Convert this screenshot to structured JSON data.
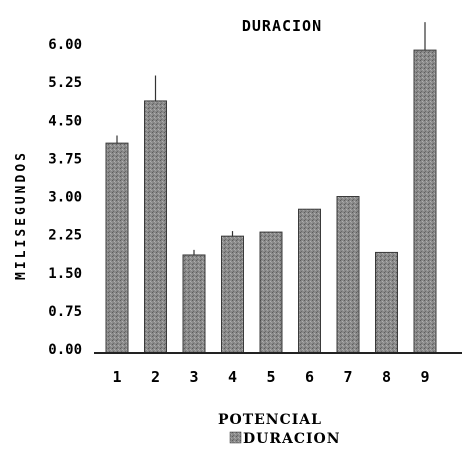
{
  "chart_data": {
    "type": "bar",
    "title": "DURACION",
    "xlabel": "POTENCIAL",
    "ylabel": "MILISEGUNDOS",
    "legend": [
      {
        "name": "DURACION",
        "color": "#8c8c8c"
      }
    ],
    "legend_position": "bottom",
    "categories": [
      "1",
      "2",
      "3",
      "4",
      "5",
      "6",
      "7",
      "8",
      "9"
    ],
    "series": [
      {
        "name": "DURACION",
        "values": [
          4.05,
          4.88,
          1.85,
          2.22,
          2.3,
          2.75,
          3.0,
          1.9,
          5.88
        ],
        "errors": [
          0.15,
          0.5,
          0.1,
          0.1,
          0.0,
          0.0,
          0.0,
          0.0,
          0.55
        ]
      }
    ],
    "yticks": [
      "6.00",
      "5.25",
      "4.50",
      "3.75",
      "3.00",
      "2.25",
      "1.50",
      "0.75",
      "0.00"
    ],
    "ylim": [
      0,
      6.0
    ],
    "grid": false,
    "bar_color": "#8c8c8c"
  }
}
